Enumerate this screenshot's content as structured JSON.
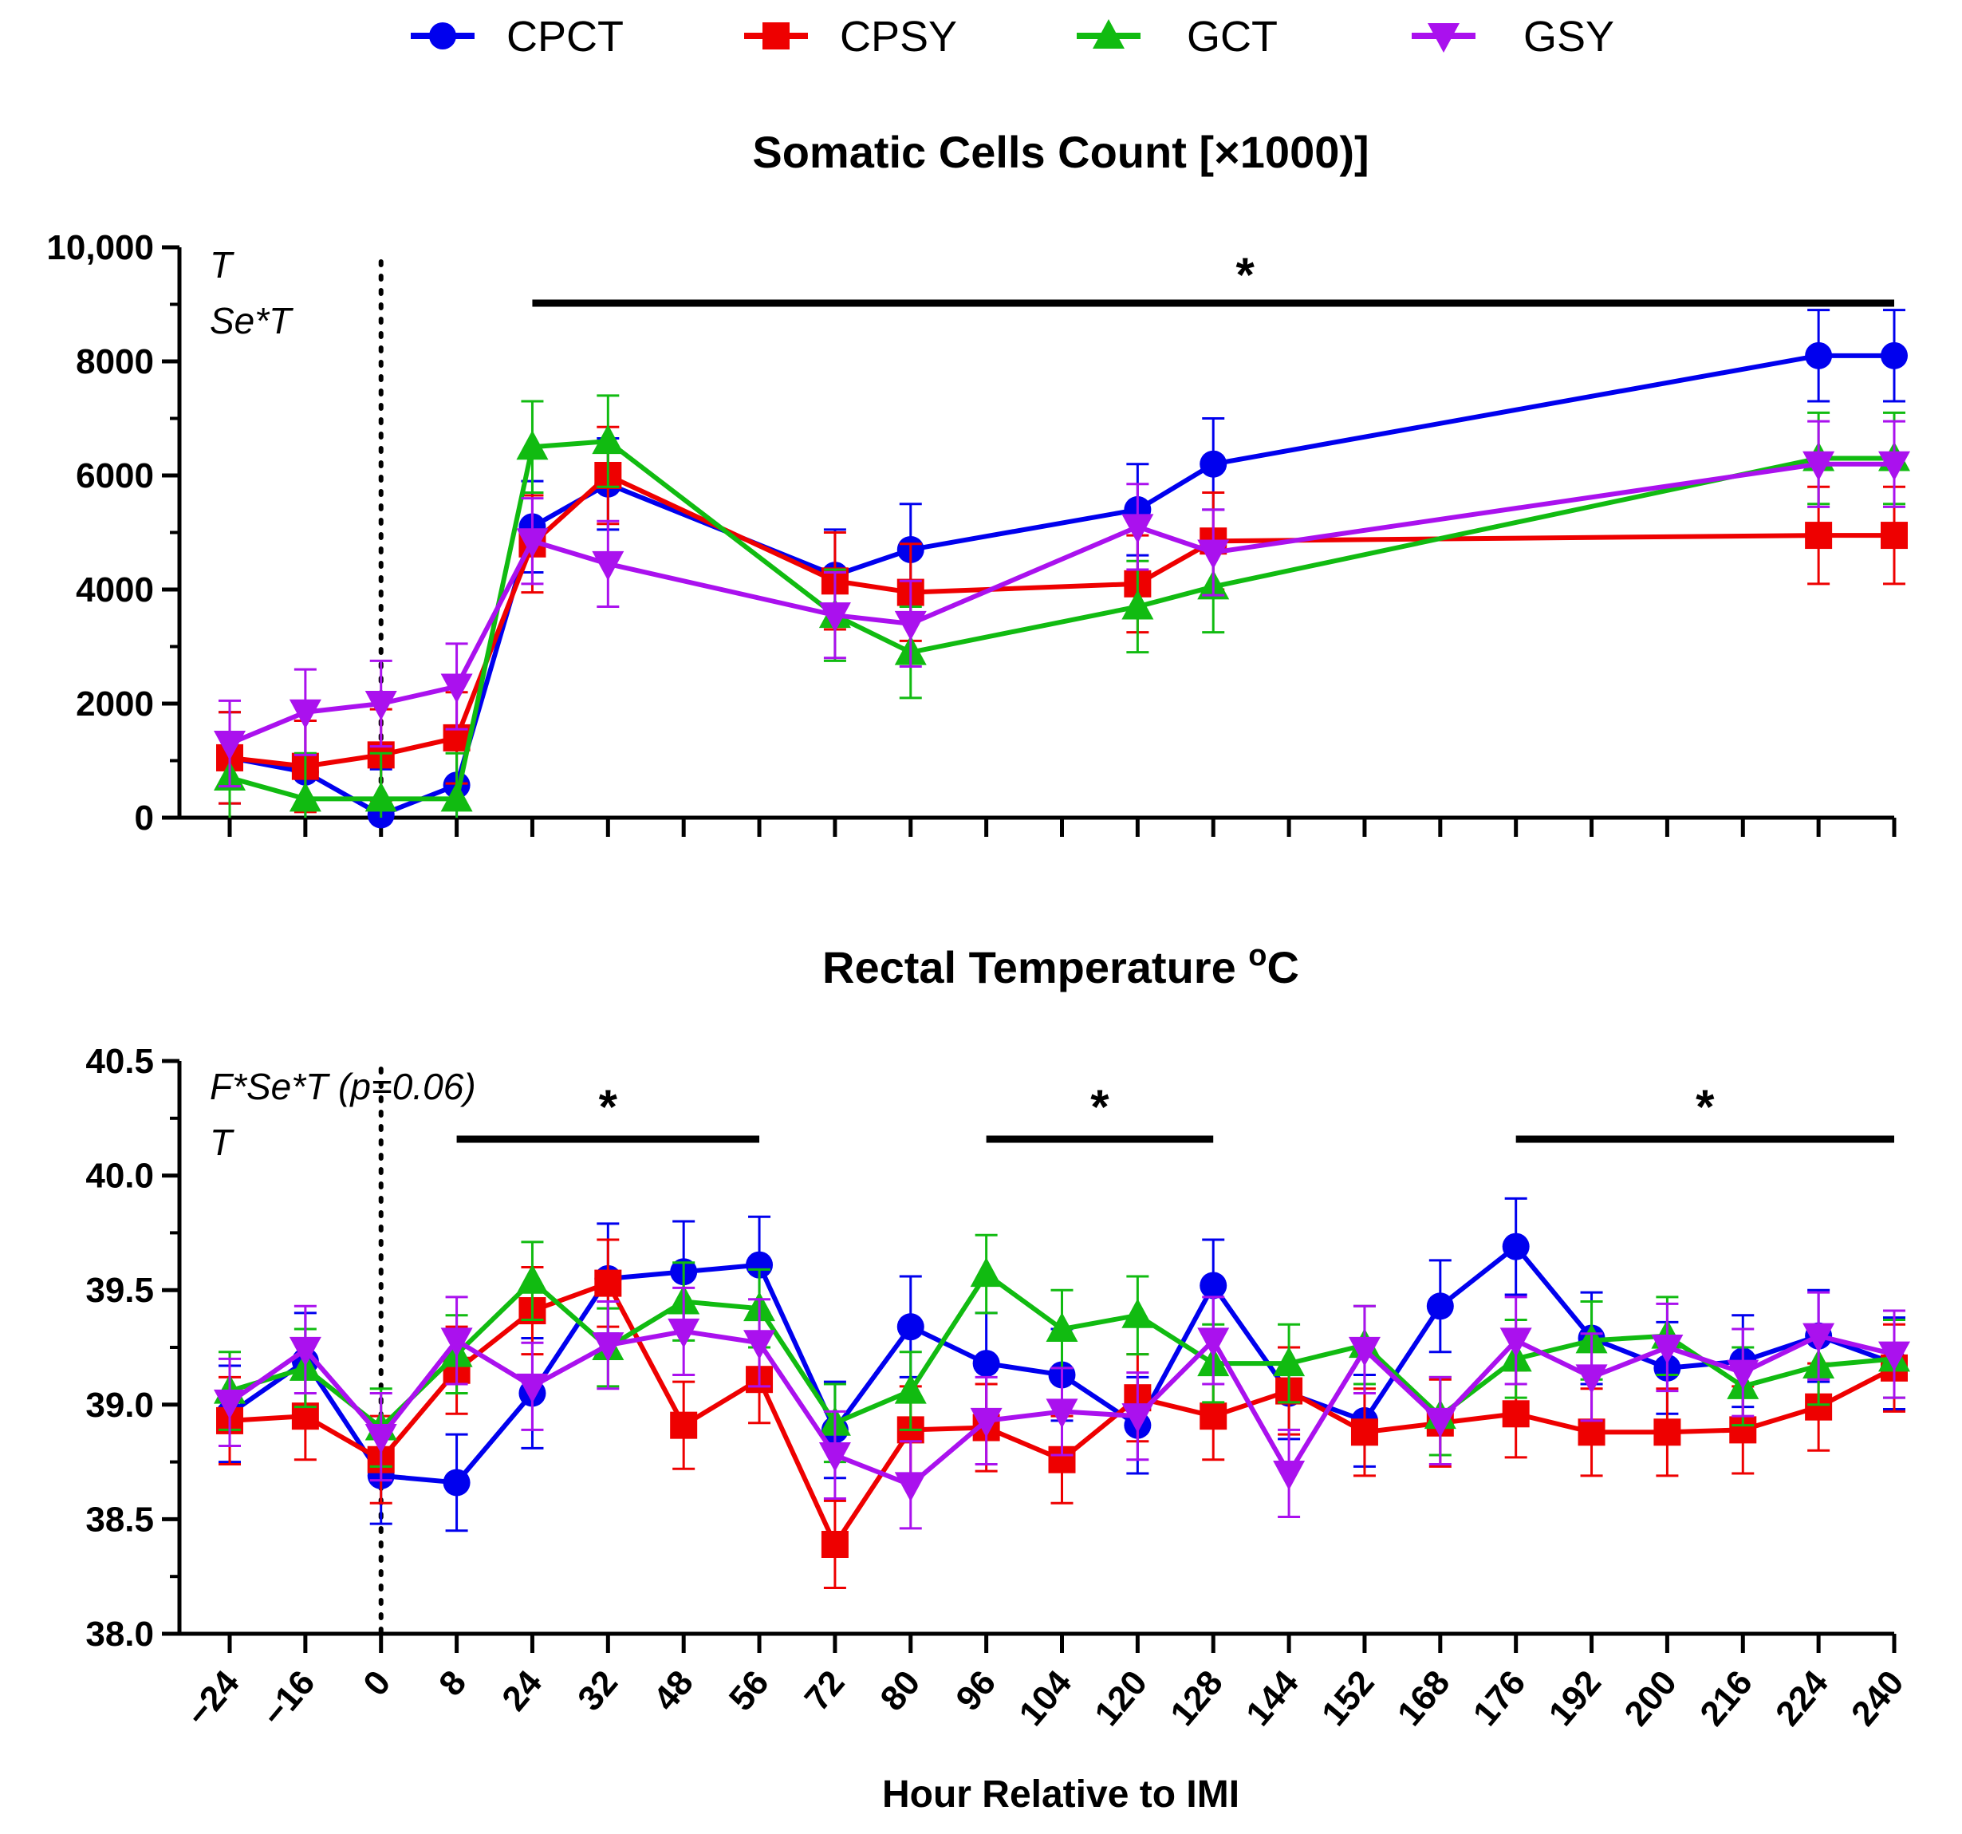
{
  "legend": [
    {
      "name": "CPCT",
      "color": "#0000ee",
      "marker": "circle"
    },
    {
      "name": "CPSY",
      "color": "#ee0000",
      "marker": "square"
    },
    {
      "name": "GCT",
      "color": "#11bb11",
      "marker": "triangle-up"
    },
    {
      "name": "GSY",
      "color": "#aa11ee",
      "marker": "triangle-down"
    }
  ],
  "xlabel": "Hour Relative to IMI",
  "chart_data": [
    {
      "type": "line",
      "title": "Somatic Cells Count [×1000)]",
      "ylim": [
        0,
        10000
      ],
      "yticks": [
        "0",
        "2000",
        "4000",
        "6000",
        "8000",
        "10,000"
      ],
      "effects": [
        "T",
        "Se*T"
      ],
      "significance": [
        {
          "label": "*",
          "from": 24,
          "to": 240
        }
      ],
      "ref_line_x": 0,
      "x": [
        -24,
        -16,
        0,
        8,
        24,
        32,
        72,
        80,
        120,
        128,
        224,
        240
      ],
      "series": [
        {
          "name": "CPCT",
          "values": [
            1050,
            800,
            50,
            570,
            5100,
            5850,
            4250,
            4700,
            5400,
            6200,
            8100,
            8100
          ],
          "errors": [
            800,
            900,
            800,
            900,
            800,
            800,
            800,
            800,
            800,
            800,
            800,
            800
          ]
        },
        {
          "name": "CPSY",
          "values": [
            1050,
            900,
            1100,
            1400,
            4800,
            6000,
            4150,
            3950,
            4100,
            4850,
            4950,
            4950
          ],
          "errors": [
            800,
            800,
            800,
            800,
            850,
            850,
            850,
            850,
            850,
            850,
            850,
            850
          ]
        },
        {
          "name": "GCT",
          "values": [
            700,
            330,
            330,
            330,
            6500,
            6600,
            3550,
            2900,
            3700,
            4050,
            6300,
            6300
          ],
          "errors": [
            800,
            800,
            800,
            800,
            800,
            800,
            800,
            800,
            800,
            800,
            800,
            800
          ]
        },
        {
          "name": "GSY",
          "values": [
            1300,
            1850,
            2000,
            2300,
            4850,
            4450,
            3550,
            3400,
            5100,
            4650,
            6200,
            6200
          ],
          "errors": [
            750,
            750,
            750,
            750,
            750,
            750,
            750,
            750,
            750,
            750,
            750,
            750
          ]
        }
      ]
    },
    {
      "type": "line",
      "title": "Rectal Temperature ",
      "title_sup": "o",
      "title_unit": "C",
      "ylim": [
        38.0,
        40.5
      ],
      "yticks": [
        "38.0",
        "38.5",
        "39.0",
        "39.5",
        "40.0",
        "40.5"
      ],
      "effects": [
        "F*Se*T (p=0.06)",
        "T"
      ],
      "significance": [
        {
          "label": "*",
          "from": 8,
          "to": 56
        },
        {
          "label": "*",
          "from": 96,
          "to": 128
        },
        {
          "label": "*",
          "from": 176,
          "to": 240
        }
      ],
      "ref_line_x": 0,
      "categories": [
        "−24",
        "−16",
        "0",
        "8",
        "24",
        "32",
        "48",
        "56",
        "72",
        "80",
        "96",
        "104",
        "120",
        "128",
        "144",
        "152",
        "168",
        "176",
        "192",
        "200",
        "216",
        "224",
        "240"
      ],
      "series": [
        {
          "name": "CPCT",
          "values": [
            38.96,
            39.19,
            38.69,
            38.66,
            39.05,
            39.55,
            39.58,
            39.61,
            38.89,
            39.34,
            39.18,
            39.13,
            38.91,
            39.52,
            39.05,
            38.93,
            39.43,
            39.69,
            39.29,
            39.16,
            39.19,
            39.3,
            39.18
          ],
          "errors": [
            0.21,
            0.21,
            0.21,
            0.21,
            0.24,
            0.24,
            0.22,
            0.21,
            0.21,
            0.22,
            0.22,
            0.2,
            0.21,
            0.2,
            0.2,
            0.2,
            0.2,
            0.21,
            0.2,
            0.2,
            0.2,
            0.2,
            0.2
          ]
        },
        {
          "name": "CPSY",
          "values": [
            38.93,
            38.95,
            38.76,
            39.15,
            39.41,
            39.53,
            38.91,
            39.11,
            38.39,
            38.89,
            38.9,
            38.76,
            39.03,
            38.95,
            39.06,
            38.88,
            38.92,
            38.96,
            38.88,
            38.88,
            38.89,
            38.99,
            39.16
          ],
          "errors": [
            0.19,
            0.19,
            0.19,
            0.19,
            0.19,
            0.19,
            0.19,
            0.19,
            0.19,
            0.19,
            0.19,
            0.19,
            0.19,
            0.19,
            0.19,
            0.19,
            0.19,
            0.19,
            0.19,
            0.19,
            0.19,
            0.19,
            0.19
          ]
        },
        {
          "name": "GCT",
          "values": [
            39.06,
            39.16,
            38.9,
            39.22,
            39.54,
            39.25,
            39.45,
            39.42,
            38.92,
            39.06,
            39.57,
            39.33,
            39.39,
            39.18,
            39.18,
            39.26,
            38.95,
            39.2,
            39.28,
            39.3,
            39.08,
            39.17,
            39.2
          ],
          "errors": [
            0.17,
            0.17,
            0.17,
            0.17,
            0.17,
            0.17,
            0.17,
            0.17,
            0.17,
            0.17,
            0.17,
            0.17,
            0.17,
            0.17,
            0.17,
            0.17,
            0.17,
            0.17,
            0.17,
            0.17,
            0.17,
            0.17,
            0.17
          ]
        },
        {
          "name": "GSY",
          "values": [
            39.01,
            39.24,
            38.86,
            39.28,
            39.08,
            39.26,
            39.32,
            39.27,
            38.78,
            38.65,
            38.93,
            38.97,
            38.95,
            39.28,
            38.7,
            39.24,
            38.93,
            39.28,
            39.12,
            39.25,
            39.14,
            39.3,
            39.22
          ],
          "errors": [
            0.19,
            0.19,
            0.19,
            0.19,
            0.19,
            0.19,
            0.19,
            0.19,
            0.19,
            0.19,
            0.19,
            0.19,
            0.19,
            0.19,
            0.19,
            0.19,
            0.19,
            0.19,
            0.19,
            0.19,
            0.19,
            0.19,
            0.19
          ]
        }
      ]
    }
  ]
}
